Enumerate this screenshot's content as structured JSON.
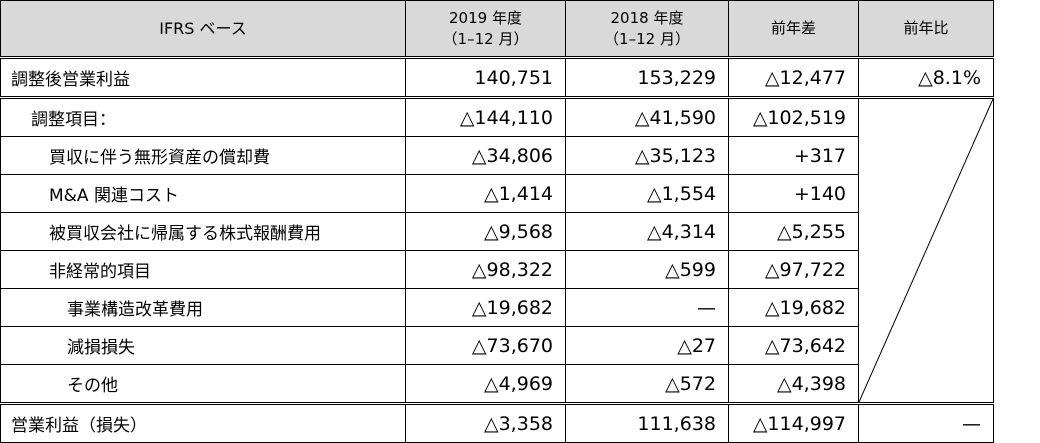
{
  "header": {
    "basis": "IFRS ベース",
    "col_2019_year": "2019 年度",
    "col_2019_period": "（1–12 月）",
    "col_2018_year": "2018 年度",
    "col_2018_period": "（1–12 月）",
    "col_diff": "前年差",
    "col_ratio": "前年比"
  },
  "rows": [
    {
      "label": "調整後営業利益",
      "v2019": "140,751",
      "v2018": "153,229",
      "diff": "△12,477",
      "ratio": "△8.1%"
    },
    {
      "label": "調整項目：",
      "v2019": "△144,110",
      "v2018": "△41,590",
      "diff": "△102,519"
    },
    {
      "label": "買収に伴う無形資産の償却費",
      "v2019": "△34,806",
      "v2018": "△35,123",
      "diff": "+317"
    },
    {
      "label": "M&A 関連コスト",
      "v2019": "△1,414",
      "v2018": "△1,554",
      "diff": "+140"
    },
    {
      "label": "被買収会社に帰属する株式報酬費用",
      "v2019": "△9,568",
      "v2018": "△4,314",
      "diff": "△5,255"
    },
    {
      "label": "非経常的項目",
      "v2019": "△98,322",
      "v2018": "△599",
      "diff": "△97,722"
    },
    {
      "label": "事業構造改革費用",
      "v2019": "△19,682",
      "v2018": "—",
      "diff": "△19,682"
    },
    {
      "label": "減損損失",
      "v2019": "△73,670",
      "v2018": "△27",
      "diff": "△73,642"
    },
    {
      "label": "その他",
      "v2019": "△4,969",
      "v2018": "△572",
      "diff": "△4,398"
    },
    {
      "label": "営業利益（損失）",
      "v2019": "△3,358",
      "v2018": "111,638",
      "diff": "△114,997",
      "ratio": "—"
    }
  ]
}
